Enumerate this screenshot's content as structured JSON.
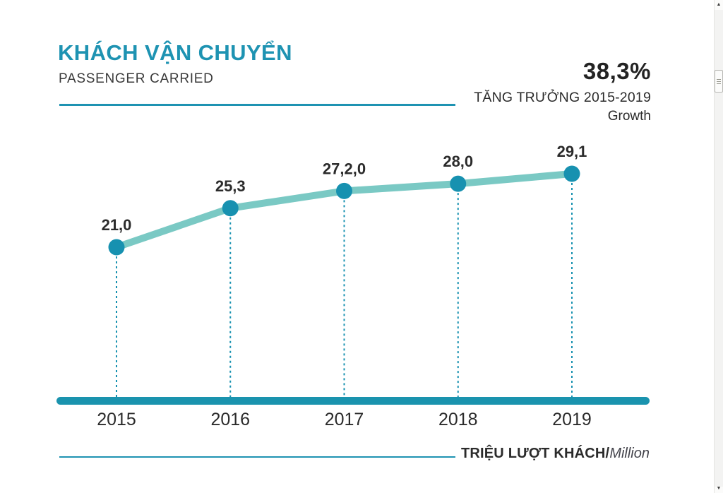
{
  "header": {
    "title": "KHÁCH VẬN CHUYỂN",
    "subtitle": "PASSENGER CARRIED"
  },
  "growth": {
    "value": "38,3%",
    "label_vi": "TĂNG TRƯỞNG 2015-2019",
    "label_en": "Growth"
  },
  "footer": {
    "unit_bold": "TRIỆU LƯỢT KHÁCH/",
    "unit_italic": "Million"
  },
  "chart_data": {
    "type": "line",
    "title": "KHÁCH VẬN CHUYỂN — PASSENGER CARRIED",
    "categories": [
      "2015",
      "2016",
      "2017",
      "2018",
      "2019"
    ],
    "values": [
      21.0,
      25.3,
      27.2,
      28.0,
      29.1
    ],
    "point_labels": [
      "21,0",
      "25,3",
      "27,2,0",
      "28,0",
      "29,1"
    ],
    "series_name": "Passengers carried (million)",
    "unit": "Triệu lượt khách / Million passengers",
    "growth_percent_2015_2019": "38,3%",
    "ylim": [
      20,
      30
    ],
    "grid": false,
    "legend": false,
    "marker_style": "filled-circle-with-dashed-drop-line",
    "x_axis_style": "thick-rounded-bar"
  },
  "colors": {
    "accent_teal": "#1e93b2",
    "line_teal_light": "#7ac9c4",
    "marker_teal": "#1791b0",
    "axis_bar_teal": "#1a93ae",
    "text_dark": "#2b2b2b",
    "text_gray": "#43434b"
  },
  "scrollbar": {
    "up_arrow": "▲",
    "down_arrow": "▼"
  }
}
